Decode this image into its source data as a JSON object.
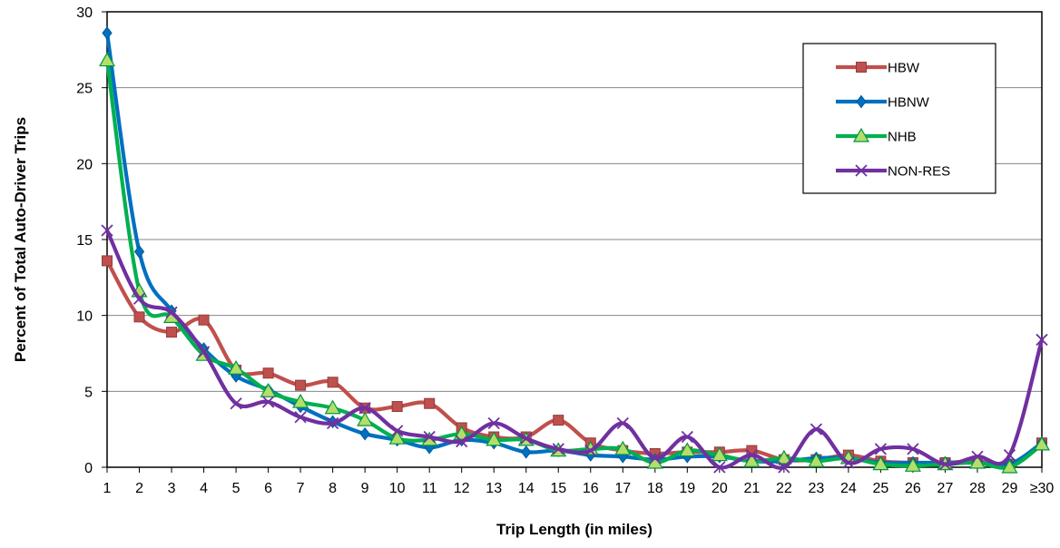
{
  "chart_data": {
    "type": "line",
    "title": "",
    "xlabel": "Trip Length (in miles)",
    "ylabel": "Percent of Total Auto-Driver Trips",
    "ylim": [
      0,
      30
    ],
    "yticks": [
      "0",
      "5",
      "10",
      "15",
      "20",
      "25",
      "30"
    ],
    "grid": "horizontal",
    "legend_position": "top-right",
    "categories": [
      "1",
      "2",
      "3",
      "4",
      "5",
      "6",
      "7",
      "8",
      "9",
      "10",
      "11",
      "12",
      "13",
      "14",
      "15",
      "16",
      "17",
      "18",
      "19",
      "20",
      "21",
      "22",
      "23",
      "24",
      "25",
      "26",
      "27",
      "28",
      "29",
      "≥30"
    ],
    "series": [
      {
        "name": "HBW",
        "color": "#C0504D",
        "marker": "square",
        "values": [
          13.6,
          9.9,
          8.9,
          9.7,
          6.4,
          6.2,
          5.4,
          5.6,
          3.9,
          4.0,
          4.2,
          2.6,
          2.0,
          2.0,
          3.1,
          1.6,
          1.1,
          0.9,
          1.0,
          1.0,
          1.1,
          0.5,
          0.5,
          0.8,
          0.4,
          0.3,
          0.3,
          0.4,
          0.2,
          1.6
        ]
      },
      {
        "name": "HBNW",
        "color": "#0070C0",
        "marker": "diamond",
        "values": [
          28.6,
          14.2,
          10.3,
          7.8,
          6.0,
          5.1,
          4.0,
          3.0,
          2.2,
          1.8,
          1.3,
          1.8,
          1.6,
          1.0,
          1.1,
          0.8,
          0.7,
          0.5,
          0.7,
          0.7,
          0.4,
          0.4,
          0.6,
          0.6,
          0.3,
          0.3,
          0.3,
          0.3,
          0.2,
          1.6
        ]
      },
      {
        "name": "NHB",
        "color": "#00B050",
        "marker": "triangle",
        "values": [
          26.8,
          11.6,
          9.9,
          7.4,
          6.5,
          5.0,
          4.3,
          3.9,
          3.1,
          1.9,
          1.8,
          2.2,
          1.8,
          1.8,
          1.1,
          1.2,
          1.2,
          0.3,
          1.1,
          0.8,
          0.4,
          0.6,
          0.4,
          0.6,
          0.2,
          0.1,
          0.2,
          0.3,
          0.0,
          1.5
        ]
      },
      {
        "name": "NON-RES",
        "color": "#7030A0",
        "marker": "x",
        "values": [
          15.6,
          11.1,
          10.2,
          7.6,
          4.2,
          4.3,
          3.3,
          2.9,
          3.9,
          2.4,
          2.0,
          1.7,
          2.9,
          1.9,
          1.2,
          1.1,
          2.9,
          0.6,
          2.0,
          0.0,
          0.8,
          0.0,
          2.5,
          0.3,
          1.2,
          1.2,
          0.2,
          0.7,
          0.8,
          8.4
        ]
      }
    ]
  }
}
